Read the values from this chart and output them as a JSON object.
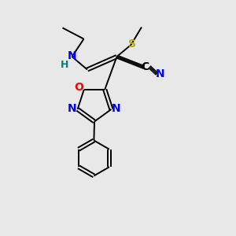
{
  "background_color": "#e8e8e8",
  "bond_color": "#000000",
  "atom_colors": {
    "N": "#0000ff",
    "O": "#ff0000",
    "S": "#bbaa00",
    "C": "#000000",
    "H": "#008080"
  },
  "figsize": [
    3.0,
    3.0
  ],
  "dpi": 100,
  "bond_lw": 1.4,
  "font_size": 10,
  "double_sep": 0.07
}
